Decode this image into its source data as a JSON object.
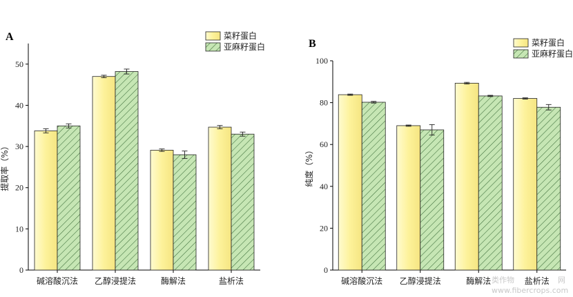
{
  "colors": {
    "rapeseed_fill": "#fdf4a6",
    "flaxseed_fill": "#c6e6b4",
    "hatch_line": "#3d6e3a",
    "axis": "#000000"
  },
  "watermark": {
    "line1": "类作物",
    "line2": "www.fibercrops.com",
    "suffix": "网"
  },
  "chart_data": [
    {
      "panel": "A",
      "type": "bar",
      "categories": [
        "碱溶酸沉法",
        "乙醇浸提法",
        "酶解法",
        "盐析法"
      ],
      "series": [
        {
          "name": "菜籽蛋白",
          "values": [
            33.8,
            47.0,
            29.1,
            34.7
          ],
          "errors": [
            0.5,
            0.3,
            0.3,
            0.4
          ]
        },
        {
          "name": "亚麻籽蛋白",
          "values": [
            35.0,
            48.2,
            28.0,
            33.0
          ],
          "errors": [
            0.5,
            0.6,
            0.9,
            0.5
          ]
        }
      ],
      "ylabel": "提取率（%）",
      "ylim": [
        0,
        55
      ],
      "yticks": [
        0,
        10,
        20,
        30,
        40,
        50
      ],
      "legend": "top-right",
      "grid": false
    },
    {
      "panel": "B",
      "type": "bar",
      "categories": [
        "碱溶酸沉法",
        "乙醇浸提法",
        "酶解法",
        "盐析法"
      ],
      "series": [
        {
          "name": "菜籽蛋白",
          "values": [
            83.8,
            69.0,
            89.3,
            82.0
          ],
          "errors": [
            0.3,
            0.3,
            0.4,
            0.3
          ]
        },
        {
          "name": "亚麻籽蛋白",
          "values": [
            80.2,
            67.0,
            83.2,
            77.8
          ],
          "errors": [
            0.4,
            2.5,
            0.3,
            1.3
          ]
        }
      ],
      "ylabel": "纯度（%）",
      "ylim": [
        0,
        100
      ],
      "yticks": [
        0,
        20,
        40,
        60,
        80,
        100
      ],
      "legend": "top-right",
      "grid": false
    }
  ]
}
